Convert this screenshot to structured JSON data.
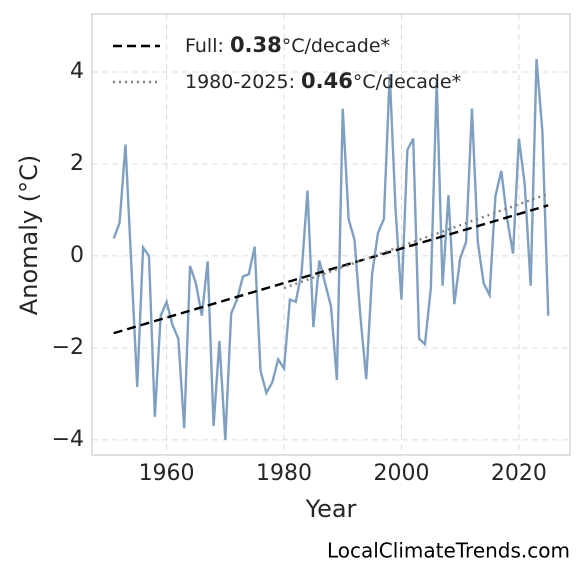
{
  "chart_data": {
    "type": "line",
    "x_label": "Year",
    "y_label": "Anomaly (°C)",
    "watermark": "LocalClimateTrends.com",
    "xlim": [
      1947.3,
      2028.7
    ],
    "ylim": [
      -4.33,
      5.26
    ],
    "xticks": [
      1960,
      1980,
      2000,
      2020
    ],
    "yticks": [
      {
        "value": -4,
        "label": "−4"
      },
      {
        "value": -2,
        "label": "−2"
      },
      0,
      2,
      4
    ],
    "grid": true,
    "legend_position": "upper left",
    "series": [
      {
        "color": "#7fa0c0",
        "style": "solid",
        "x": [
          1951,
          1952,
          1953,
          1954,
          1955,
          1956,
          1957,
          1958,
          1959,
          1960,
          1961,
          1962,
          1963,
          1964,
          1965,
          1966,
          1967,
          1968,
          1969,
          1970,
          1971,
          1972,
          1973,
          1974,
          1975,
          1976,
          1977,
          1978,
          1979,
          1980,
          1981,
          1982,
          1983,
          1984,
          1985,
          1986,
          1987,
          1988,
          1989,
          1990,
          1991,
          1992,
          1993,
          1994,
          1995,
          1996,
          1997,
          1998,
          1999,
          2000,
          2001,
          2002,
          2003,
          2004,
          2005,
          2006,
          2007,
          2008,
          2009,
          2010,
          2011,
          2012,
          2013,
          2014,
          2015,
          2016,
          2017,
          2018,
          2019,
          2020,
          2021,
          2022,
          2023,
          2024,
          2025
        ],
        "values": [
          0.38,
          0.72,
          2.42,
          -0.2,
          -2.85,
          0.18,
          0.0,
          -3.5,
          -1.3,
          -1.0,
          -1.5,
          -1.8,
          -3.75,
          -0.22,
          -0.6,
          -1.3,
          -0.12,
          -3.7,
          -1.85,
          -4.0,
          -1.25,
          -0.95,
          -0.45,
          -0.4,
          0.2,
          -2.5,
          -2.98,
          -2.75,
          -2.25,
          -2.45,
          -0.95,
          -1.0,
          -0.35,
          1.42,
          -1.55,
          -0.1,
          -0.6,
          -1.1,
          -2.7,
          3.2,
          0.8,
          0.35,
          -1.3,
          -2.68,
          -0.4,
          0.5,
          0.8,
          3.95,
          1.0,
          -0.95,
          2.3,
          2.55,
          -1.8,
          -1.92,
          -0.7,
          3.8,
          -0.65,
          1.32,
          -1.05,
          -0.05,
          0.3,
          3.2,
          0.3,
          -0.6,
          -0.85,
          1.3,
          1.85,
          0.8,
          0.05,
          2.55,
          1.55,
          -0.65,
          4.28,
          2.7,
          -1.3
        ]
      },
      {
        "color": "#000000",
        "style": "dashed",
        "label": {
          "prefix": "Full: ",
          "rate": 0.38,
          "unit": "°C/decade*"
        },
        "x": [
          1951,
          2025
        ],
        "values": [
          -1.68,
          1.1
        ]
      },
      {
        "color": "#808080",
        "style": "dotted",
        "label": {
          "prefix": "1980-2025: ",
          "rate": 0.46,
          "unit": "°C/decade*"
        },
        "x": [
          1980,
          2025
        ],
        "values": [
          -0.7,
          1.35
        ]
      }
    ]
  }
}
